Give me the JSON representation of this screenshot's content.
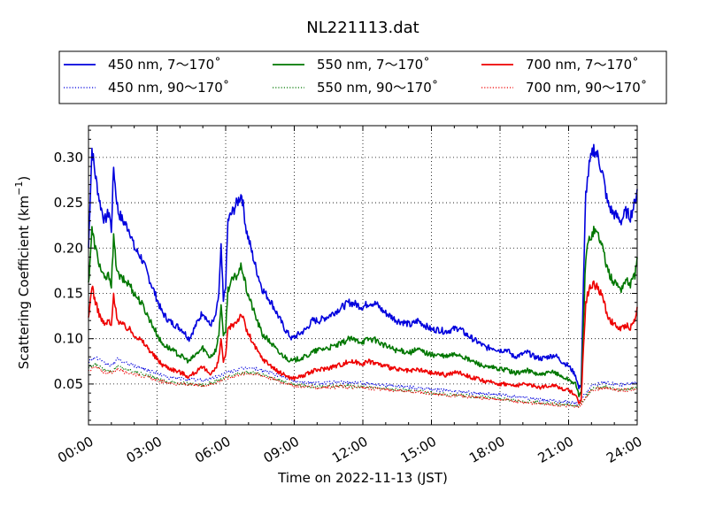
{
  "chart_data": {
    "type": "line",
    "title": "NL221113.dat",
    "xlabel": "Time on 2022-11-13 (JST)",
    "ylabel": "Scattering Coefficient (km",
    "ylabel_exp": "−1",
    "ylabel_close": ")",
    "xlim": [
      0,
      24
    ],
    "ylim": [
      0.005,
      0.335
    ],
    "grid": true,
    "legend_position": "top",
    "x_ticks": [
      0,
      3,
      6,
      9,
      12,
      15,
      18,
      21,
      24
    ],
    "x_tick_labels": [
      "00:00",
      "03:00",
      "06:00",
      "09:00",
      "12:00",
      "15:00",
      "18:00",
      "21:00",
      "24:00"
    ],
    "y_ticks": [
      0.05,
      0.1,
      0.15,
      0.2,
      0.25,
      0.3
    ],
    "y_tick_labels": [
      "0.05",
      "0.10",
      "0.15",
      "0.20",
      "0.25",
      "0.30"
    ],
    "series": [
      {
        "name": "450 nm, 7～170˚",
        "color": "#0000dd",
        "style": "solid",
        "x": [
          0,
          0.15,
          0.3,
          0.5,
          0.7,
          0.9,
          1.0,
          1.1,
          1.2,
          1.3,
          1.5,
          1.8,
          2.0,
          2.3,
          2.6,
          2.9,
          3.2,
          3.5,
          3.8,
          4.1,
          4.4,
          4.6,
          4.8,
          5.0,
          5.3,
          5.5,
          5.6,
          5.7,
          5.8,
          5.9,
          6.0,
          6.1,
          6.3,
          6.5,
          6.7,
          6.9,
          7.1,
          7.3,
          7.6,
          8.0,
          8.3,
          8.6,
          8.9,
          9.2,
          9.5,
          9.8,
          10.1,
          10.5,
          10.8,
          11.1,
          11.4,
          11.7,
          12.0,
          12.3,
          12.6,
          12.9,
          13.2,
          13.5,
          13.8,
          14.1,
          14.4,
          14.7,
          15.0,
          15.3,
          15.6,
          15.9,
          16.2,
          16.5,
          16.8,
          17.1,
          17.4,
          17.7,
          18.0,
          18.3,
          18.6,
          18.9,
          19.2,
          19.5,
          19.8,
          20.1,
          20.4,
          20.7,
          21.0,
          21.3,
          21.45,
          21.55,
          21.65,
          21.75,
          21.9,
          22.1,
          22.3,
          22.5,
          22.7,
          22.9,
          23.1,
          23.3,
          23.5,
          23.7,
          23.9,
          24.0
        ],
        "y": [
          0.2,
          0.31,
          0.28,
          0.25,
          0.23,
          0.24,
          0.22,
          0.29,
          0.26,
          0.24,
          0.23,
          0.22,
          0.2,
          0.19,
          0.17,
          0.15,
          0.13,
          0.12,
          0.115,
          0.11,
          0.1,
          0.11,
          0.12,
          0.13,
          0.115,
          0.12,
          0.13,
          0.15,
          0.2,
          0.14,
          0.16,
          0.23,
          0.24,
          0.25,
          0.26,
          0.22,
          0.2,
          0.18,
          0.155,
          0.14,
          0.125,
          0.11,
          0.1,
          0.105,
          0.11,
          0.12,
          0.12,
          0.125,
          0.13,
          0.135,
          0.14,
          0.138,
          0.135,
          0.14,
          0.138,
          0.13,
          0.125,
          0.12,
          0.118,
          0.115,
          0.12,
          0.115,
          0.11,
          0.11,
          0.108,
          0.11,
          0.112,
          0.105,
          0.1,
          0.095,
          0.09,
          0.09,
          0.087,
          0.088,
          0.08,
          0.082,
          0.085,
          0.08,
          0.078,
          0.08,
          0.082,
          0.075,
          0.07,
          0.06,
          0.045,
          0.05,
          0.16,
          0.26,
          0.29,
          0.31,
          0.3,
          0.28,
          0.25,
          0.24,
          0.235,
          0.23,
          0.24,
          0.235,
          0.25,
          0.265
        ]
      },
      {
        "name": "550 nm, 7～170˚",
        "color": "#007700",
        "style": "solid",
        "x": [
          0,
          0.15,
          0.3,
          0.5,
          0.7,
          0.9,
          1.0,
          1.1,
          1.2,
          1.3,
          1.5,
          1.8,
          2.0,
          2.3,
          2.6,
          2.9,
          3.2,
          3.5,
          3.8,
          4.1,
          4.4,
          4.6,
          4.8,
          5.0,
          5.3,
          5.5,
          5.6,
          5.7,
          5.8,
          5.9,
          6.0,
          6.1,
          6.3,
          6.5,
          6.7,
          6.9,
          7.1,
          7.3,
          7.6,
          8.0,
          8.3,
          8.6,
          8.9,
          9.2,
          9.5,
          9.8,
          10.1,
          10.5,
          10.8,
          11.1,
          11.4,
          11.7,
          12.0,
          12.3,
          12.6,
          12.9,
          13.2,
          13.5,
          13.8,
          14.1,
          14.4,
          14.7,
          15.0,
          15.3,
          15.6,
          15.9,
          16.2,
          16.5,
          16.8,
          17.1,
          17.4,
          17.7,
          18.0,
          18.3,
          18.6,
          18.9,
          19.2,
          19.5,
          19.8,
          20.1,
          20.4,
          20.7,
          21.0,
          21.3,
          21.45,
          21.55,
          21.65,
          21.75,
          21.9,
          22.1,
          22.3,
          22.5,
          22.7,
          22.9,
          23.1,
          23.3,
          23.5,
          23.7,
          23.9,
          24.0
        ],
        "y": [
          0.16,
          0.22,
          0.2,
          0.18,
          0.165,
          0.17,
          0.16,
          0.21,
          0.185,
          0.17,
          0.165,
          0.16,
          0.15,
          0.14,
          0.125,
          0.11,
          0.095,
          0.09,
          0.085,
          0.08,
          0.075,
          0.08,
          0.085,
          0.09,
          0.08,
          0.085,
          0.09,
          0.105,
          0.14,
          0.1,
          0.11,
          0.155,
          0.165,
          0.17,
          0.18,
          0.155,
          0.14,
          0.125,
          0.105,
          0.095,
          0.085,
          0.08,
          0.075,
          0.078,
          0.08,
          0.085,
          0.088,
          0.09,
          0.092,
          0.095,
          0.1,
          0.098,
          0.097,
          0.1,
          0.098,
          0.093,
          0.09,
          0.087,
          0.086,
          0.085,
          0.088,
          0.085,
          0.082,
          0.082,
          0.08,
          0.082,
          0.083,
          0.078,
          0.075,
          0.072,
          0.068,
          0.068,
          0.066,
          0.066,
          0.062,
          0.063,
          0.065,
          0.062,
          0.06,
          0.062,
          0.063,
          0.058,
          0.055,
          0.05,
          0.037,
          0.04,
          0.12,
          0.19,
          0.21,
          0.22,
          0.215,
          0.2,
          0.175,
          0.165,
          0.16,
          0.155,
          0.165,
          0.16,
          0.17,
          0.19
        ]
      },
      {
        "name": "700 nm, 7～170˚",
        "color": "#ee0000",
        "style": "solid",
        "x": [
          0,
          0.15,
          0.3,
          0.5,
          0.7,
          0.9,
          1.0,
          1.1,
          1.2,
          1.3,
          1.5,
          1.8,
          2.0,
          2.3,
          2.6,
          2.9,
          3.2,
          3.5,
          3.8,
          4.1,
          4.4,
          4.6,
          4.8,
          5.0,
          5.3,
          5.5,
          5.6,
          5.7,
          5.8,
          5.9,
          6.0,
          6.1,
          6.3,
          6.5,
          6.7,
          6.9,
          7.1,
          7.3,
          7.6,
          8.0,
          8.3,
          8.6,
          8.9,
          9.2,
          9.5,
          9.8,
          10.1,
          10.5,
          10.8,
          11.1,
          11.4,
          11.7,
          12.0,
          12.3,
          12.6,
          12.9,
          13.2,
          13.5,
          13.8,
          14.1,
          14.4,
          14.7,
          15.0,
          15.3,
          15.6,
          15.9,
          16.2,
          16.5,
          16.8,
          17.1,
          17.4,
          17.7,
          18.0,
          18.3,
          18.6,
          18.9,
          19.2,
          19.5,
          19.8,
          20.1,
          20.4,
          20.7,
          21.0,
          21.3,
          21.45,
          21.55,
          21.65,
          21.75,
          21.9,
          22.1,
          22.3,
          22.5,
          22.7,
          22.9,
          23.1,
          23.3,
          23.5,
          23.7,
          23.9,
          24.0
        ],
        "y": [
          0.12,
          0.16,
          0.14,
          0.125,
          0.115,
          0.12,
          0.112,
          0.15,
          0.13,
          0.12,
          0.115,
          0.11,
          0.105,
          0.098,
          0.09,
          0.08,
          0.072,
          0.068,
          0.065,
          0.062,
          0.058,
          0.062,
          0.065,
          0.068,
          0.062,
          0.065,
          0.068,
          0.078,
          0.1,
          0.075,
          0.08,
          0.11,
          0.115,
          0.12,
          0.128,
          0.11,
          0.1,
          0.09,
          0.078,
          0.07,
          0.063,
          0.06,
          0.056,
          0.058,
          0.06,
          0.064,
          0.066,
          0.068,
          0.07,
          0.072,
          0.075,
          0.074,
          0.073,
          0.075,
          0.073,
          0.07,
          0.068,
          0.066,
          0.065,
          0.064,
          0.066,
          0.064,
          0.062,
          0.062,
          0.06,
          0.062,
          0.063,
          0.06,
          0.057,
          0.055,
          0.052,
          0.052,
          0.05,
          0.05,
          0.048,
          0.049,
          0.05,
          0.048,
          0.046,
          0.048,
          0.049,
          0.045,
          0.043,
          0.038,
          0.03,
          0.032,
          0.09,
          0.14,
          0.155,
          0.16,
          0.155,
          0.145,
          0.125,
          0.118,
          0.113,
          0.11,
          0.115,
          0.112,
          0.12,
          0.135
        ]
      },
      {
        "name": "450 nm, 90～170˚",
        "color": "#0000dd",
        "style": "dotted",
        "x": [
          0,
          0.3,
          0.6,
          1.0,
          1.3,
          1.6,
          2.0,
          2.5,
          3.0,
          3.5,
          4.0,
          4.5,
          5.0,
          5.5,
          6.0,
          6.5,
          7.0,
          7.5,
          8.0,
          8.5,
          9.0,
          9.5,
          10.0,
          11.0,
          12.0,
          13.0,
          14.0,
          15.0,
          16.0,
          17.0,
          18.0,
          19.0,
          20.0,
          21.0,
          21.4,
          21.7,
          22.0,
          22.5,
          23.0,
          23.5,
          24.0
        ],
        "y": [
          0.075,
          0.08,
          0.074,
          0.07,
          0.078,
          0.073,
          0.07,
          0.066,
          0.062,
          0.057,
          0.056,
          0.055,
          0.054,
          0.057,
          0.062,
          0.066,
          0.068,
          0.066,
          0.062,
          0.058,
          0.053,
          0.052,
          0.051,
          0.052,
          0.051,
          0.049,
          0.047,
          0.044,
          0.042,
          0.04,
          0.038,
          0.035,
          0.032,
          0.03,
          0.028,
          0.038,
          0.048,
          0.052,
          0.05,
          0.049,
          0.052
        ]
      },
      {
        "name": "550 nm, 90～170˚",
        "color": "#007700",
        "style": "dotted",
        "x": [
          0,
          0.3,
          0.6,
          1.0,
          1.3,
          1.6,
          2.0,
          2.5,
          3.0,
          3.5,
          4.0,
          4.5,
          5.0,
          5.5,
          6.0,
          6.5,
          7.0,
          7.5,
          8.0,
          8.5,
          9.0,
          9.5,
          10.0,
          11.0,
          12.0,
          13.0,
          14.0,
          15.0,
          16.0,
          17.0,
          18.0,
          19.0,
          20.0,
          21.0,
          21.4,
          21.7,
          22.0,
          22.5,
          23.0,
          23.5,
          24.0
        ],
        "y": [
          0.068,
          0.072,
          0.067,
          0.064,
          0.07,
          0.066,
          0.064,
          0.06,
          0.056,
          0.052,
          0.051,
          0.05,
          0.049,
          0.052,
          0.057,
          0.061,
          0.063,
          0.061,
          0.057,
          0.053,
          0.049,
          0.048,
          0.047,
          0.048,
          0.047,
          0.045,
          0.043,
          0.04,
          0.038,
          0.036,
          0.034,
          0.031,
          0.029,
          0.027,
          0.025,
          0.034,
          0.044,
          0.047,
          0.045,
          0.044,
          0.046
        ]
      },
      {
        "name": "700 nm, 90～170˚",
        "color": "#ee0000",
        "style": "dotted",
        "x": [
          0,
          0.3,
          0.6,
          1.0,
          1.3,
          1.6,
          2.0,
          2.5,
          3.0,
          3.5,
          4.0,
          4.5,
          5.0,
          5.5,
          6.0,
          6.5,
          7.0,
          7.5,
          8.0,
          8.5,
          9.0,
          9.5,
          10.0,
          11.0,
          12.0,
          13.0,
          14.0,
          15.0,
          16.0,
          17.0,
          18.0,
          19.0,
          20.0,
          21.0,
          21.4,
          21.7,
          22.0,
          22.5,
          23.0,
          23.5,
          24.0
        ],
        "y": [
          0.065,
          0.069,
          0.064,
          0.062,
          0.067,
          0.063,
          0.061,
          0.058,
          0.054,
          0.051,
          0.05,
          0.049,
          0.048,
          0.051,
          0.056,
          0.06,
          0.062,
          0.06,
          0.056,
          0.052,
          0.048,
          0.047,
          0.046,
          0.047,
          0.046,
          0.044,
          0.042,
          0.039,
          0.037,
          0.035,
          0.033,
          0.03,
          0.028,
          0.026,
          0.024,
          0.033,
          0.043,
          0.046,
          0.044,
          0.043,
          0.045
        ]
      }
    ]
  }
}
